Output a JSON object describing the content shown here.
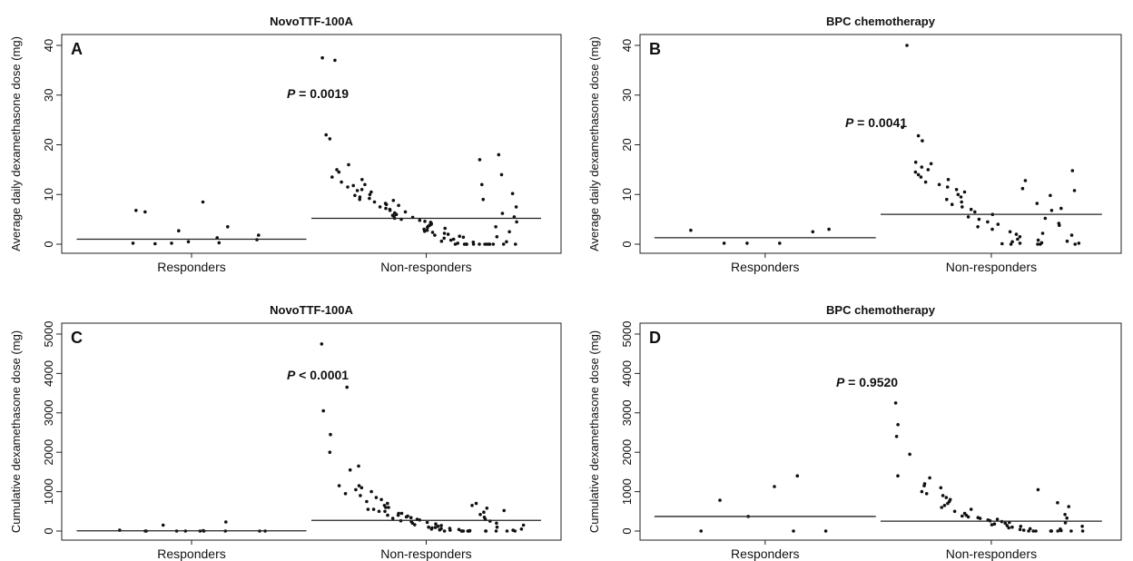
{
  "chart_data": [
    {
      "type": "scatter",
      "panel": "A",
      "title": "NovoTTF-100A",
      "ylabel": "Average daily dexamethasone dose (mg)",
      "categories": [
        "Responders",
        "Non-responders"
      ],
      "ylim": [
        0,
        40
      ],
      "yticks": [
        0,
        10,
        20,
        30,
        40
      ],
      "p_prefix": "P",
      "p_text": " = 0.0019",
      "medians": [
        1.0,
        5.2
      ],
      "series": [
        {
          "category": "Responders",
          "values": [
            0.2,
            6.5,
            6.8,
            0.1,
            2.7,
            0.2,
            0.5,
            8.5,
            1.3,
            0.3,
            3.5,
            1.8,
            0.9
          ]
        },
        {
          "category": "Non-responders",
          "values": [
            37.5,
            37.0,
            21.2,
            22.0,
            16.0,
            15.0,
            14.5,
            13.5,
            13.0,
            12.5,
            12.0,
            11.8,
            11.5,
            11.0,
            10.8,
            10.5,
            10.0,
            9.8,
            9.5,
            9.2,
            9.0,
            8.8,
            8.5,
            8.2,
            8.0,
            7.8,
            7.5,
            7.2,
            7.0,
            6.8,
            6.5,
            6.3,
            6.0,
            5.8,
            5.6,
            5.4,
            5.2,
            5.0,
            4.8,
            4.6,
            4.4,
            4.2,
            4.0,
            3.8,
            3.6,
            3.4,
            3.2,
            3.0,
            2.8,
            2.6,
            2.4,
            2.2,
            2.0,
            1.8,
            1.6,
            1.4,
            1.2,
            1.0,
            0.8,
            0.6,
            0.4,
            0.2,
            0,
            0,
            0,
            0,
            0,
            0,
            0,
            0,
            0,
            0,
            0,
            0,
            18.0,
            17.0,
            14.0,
            12.0,
            10.2,
            9.0,
            7.5,
            6.2,
            5.5,
            4.5,
            3.5,
            2.5,
            1.5,
            0.5,
            0,
            0
          ]
        }
      ]
    },
    {
      "type": "scatter",
      "panel": "B",
      "title": "BPC chemotherapy",
      "ylabel": "Average daily dexamethasone dose (mg)",
      "categories": [
        "Responders",
        "Non-responders"
      ],
      "ylim": [
        0,
        40
      ],
      "yticks": [
        0,
        10,
        20,
        30,
        40
      ],
      "p_prefix": "P",
      "p_text": " = 0.0041",
      "medians": [
        1.3,
        6.0
      ],
      "series": [
        {
          "category": "Responders",
          "values": [
            2.8,
            0.2,
            0.2,
            0.2,
            2.5,
            3.0
          ]
        },
        {
          "category": "Non-responders",
          "values": [
            40.0,
            23.5,
            21.8,
            20.8,
            16.5,
            16.2,
            15.5,
            15.0,
            14.5,
            14.0,
            13.5,
            13.0,
            12.5,
            12.0,
            11.5,
            11.0,
            10.5,
            10.0,
            9.5,
            9.0,
            8.5,
            8.0,
            7.5,
            7.0,
            6.5,
            6.0,
            5.5,
            5.0,
            4.5,
            4.0,
            3.5,
            3.0,
            2.5,
            2.0,
            1.5,
            1.0,
            0.5,
            0.2,
            0.1,
            0,
            0,
            0,
            12.8,
            11.2,
            9.8,
            8.2,
            6.8,
            5.2,
            3.8,
            2.2,
            0.8,
            0.3,
            14.8,
            10.8,
            7.2,
            4.2,
            1.8,
            0.6,
            0.2,
            0
          ]
        }
      ]
    },
    {
      "type": "scatter",
      "panel": "C",
      "title": "NovoTTF-100A",
      "ylabel": "Cumulative dexamethasone dose (mg)",
      "categories": [
        "Responders",
        "Non-responders"
      ],
      "ylim": [
        0,
        5000
      ],
      "yticks": [
        0,
        1000,
        2000,
        3000,
        4000,
        5000
      ],
      "p_prefix": "P",
      "p_text": " < 0.0001",
      "medians": [
        5,
        270
      ],
      "series": [
        {
          "category": "Responders",
          "values": [
            20,
            0,
            0,
            150,
            0,
            0,
            10,
            0,
            0,
            230,
            0,
            0,
            0
          ]
        },
        {
          "category": "Non-responders",
          "values": [
            4750,
            3650,
            3050,
            2450,
            2000,
            1650,
            1550,
            1150,
            1150,
            1100,
            1050,
            1000,
            950,
            900,
            850,
            800,
            750,
            700,
            650,
            600,
            600,
            550,
            550,
            500,
            500,
            450,
            450,
            400,
            400,
            380,
            360,
            340,
            320,
            300,
            280,
            260,
            240,
            220,
            200,
            180,
            160,
            140,
            120,
            100,
            90,
            80,
            70,
            60,
            50,
            40,
            30,
            20,
            10,
            0,
            0,
            0,
            0,
            0,
            0,
            0,
            0,
            0,
            0,
            0,
            700,
            650,
            580,
            520,
            480,
            420,
            350,
            300,
            250,
            200,
            150,
            100,
            50,
            20,
            0,
            0
          ]
        }
      ]
    },
    {
      "type": "scatter",
      "panel": "D",
      "title": "BPC chemotherapy",
      "ylabel": "Cumulative dexamethasone dose (mg)",
      "categories": [
        "Responders",
        "Non-responders"
      ],
      "ylim": [
        0,
        5000
      ],
      "yticks": [
        0,
        1000,
        2000,
        3000,
        4000,
        5000
      ],
      "p_prefix": "P",
      "p_text": " = 0.9520",
      "medians": [
        370,
        250
      ],
      "series": [
        {
          "category": "Responders",
          "values": [
            0,
            780,
            370,
            1130,
            0,
            1400,
            0
          ]
        },
        {
          "category": "Non-responders",
          "values": [
            3250,
            2700,
            2400,
            1950,
            1400,
            1350,
            1200,
            1150,
            1100,
            1000,
            950,
            900,
            850,
            800,
            750,
            700,
            650,
            600,
            550,
            500,
            450,
            400,
            380,
            360,
            340,
            320,
            300,
            280,
            260,
            240,
            220,
            200,
            180,
            160,
            140,
            120,
            100,
            80,
            60,
            40,
            20,
            0,
            0,
            0,
            0,
            0,
            0,
            0,
            1050,
            720,
            620,
            420,
            330,
            210,
            120,
            50,
            10,
            0,
            0
          ]
        }
      ]
    }
  ]
}
